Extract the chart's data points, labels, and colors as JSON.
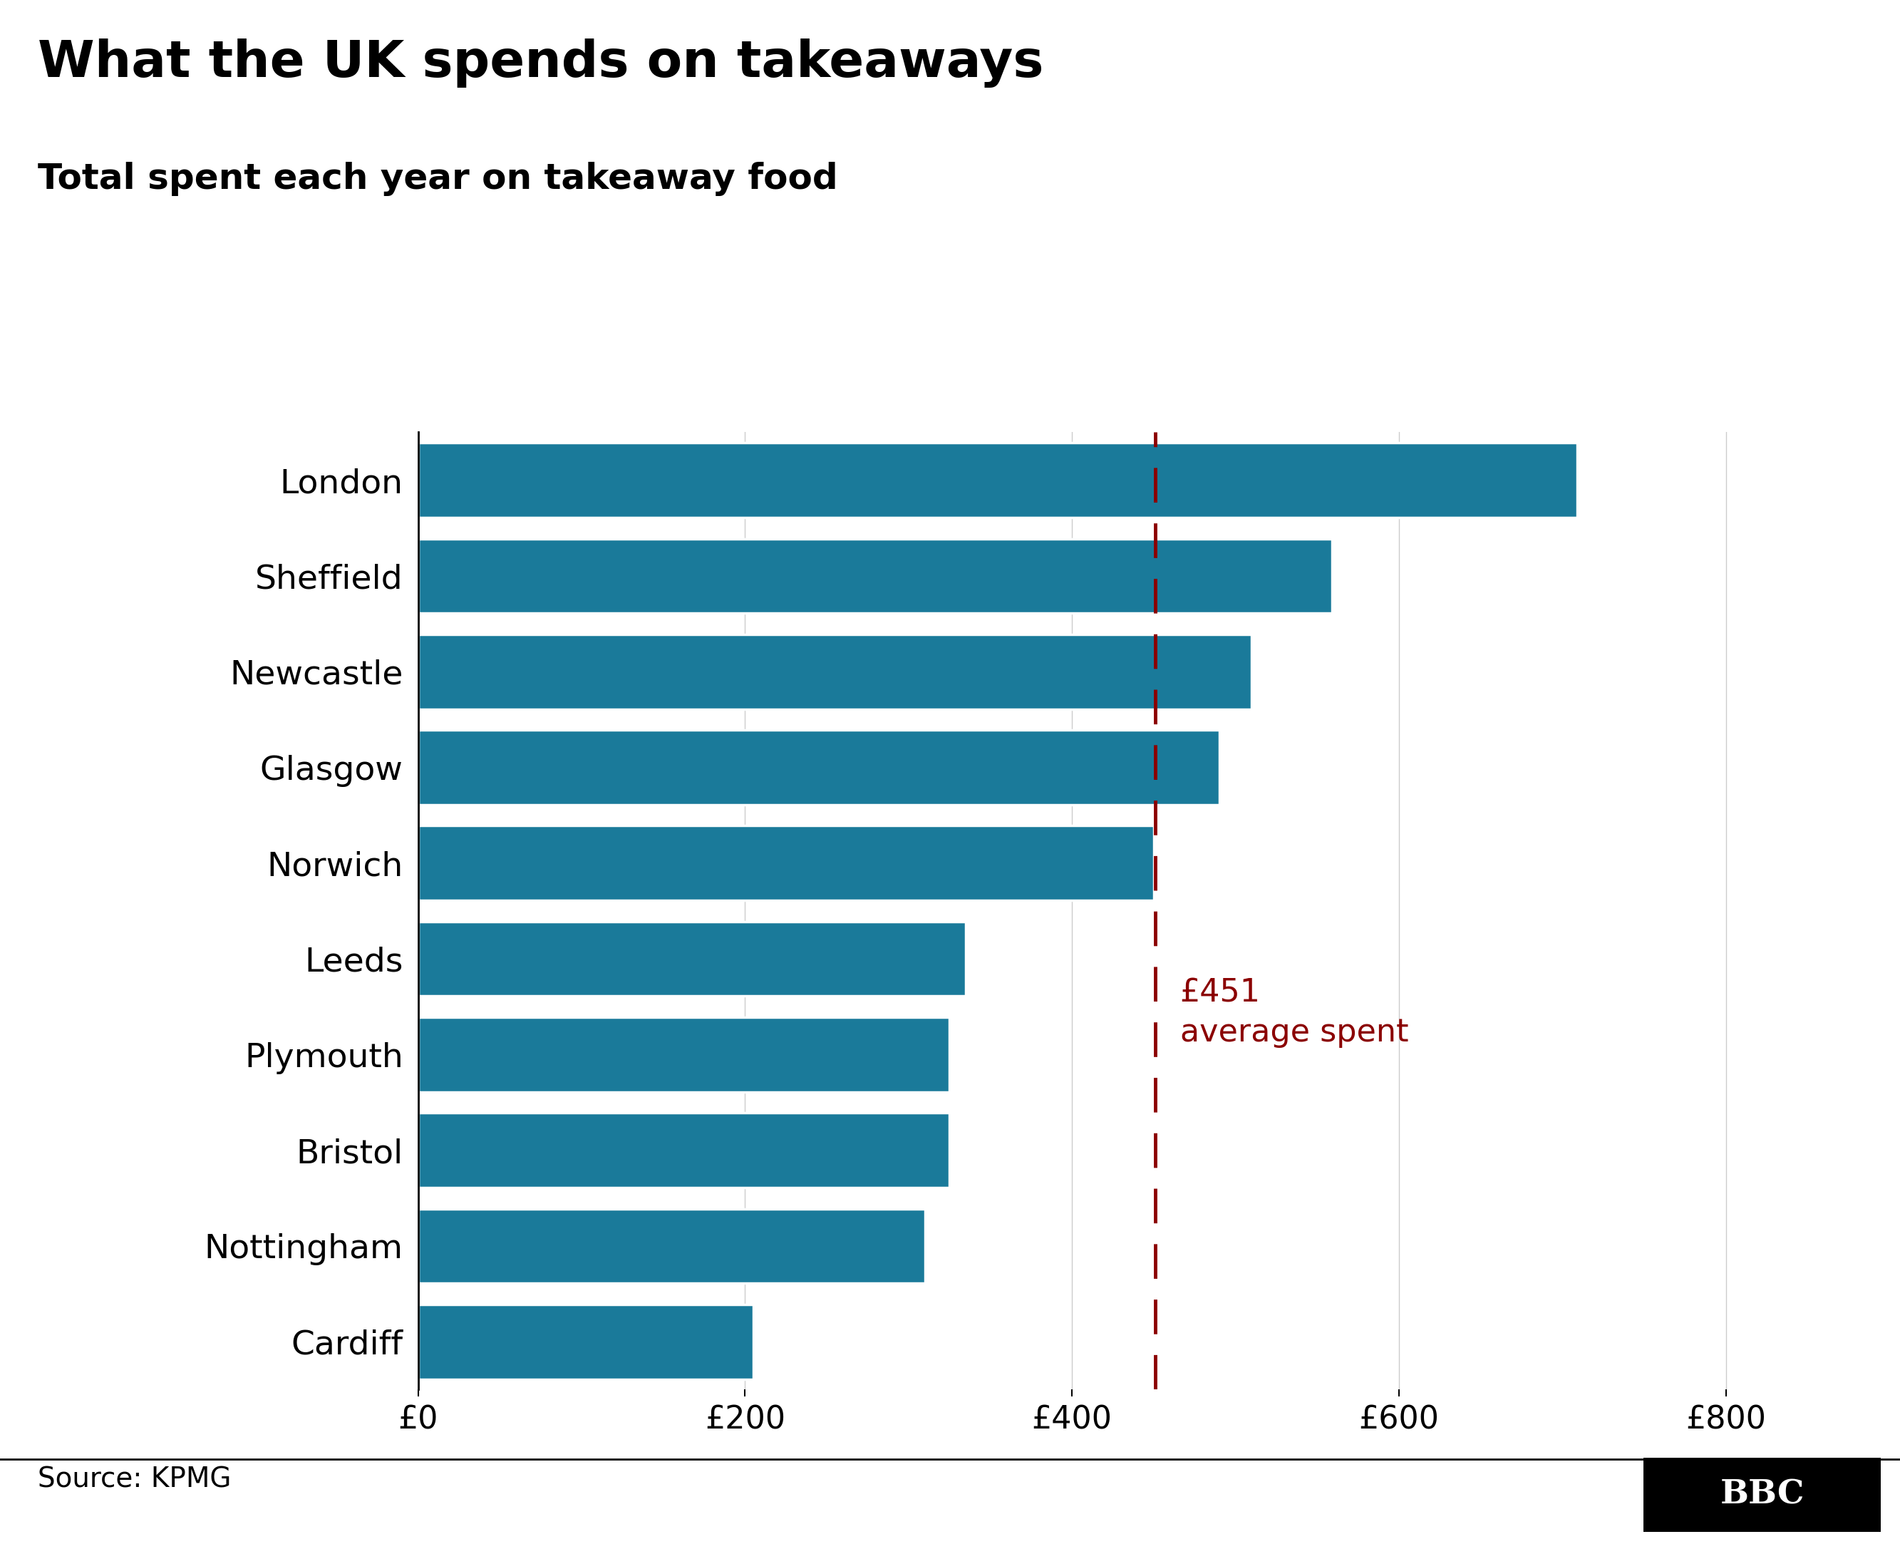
{
  "title": "What the UK spends on takeaways",
  "subtitle": "Total spent each year on takeaway food",
  "cities": [
    "London",
    "Sheffield",
    "Newcastle",
    "Glasgow",
    "Norwich",
    "Leeds",
    "Plymouth",
    "Bristol",
    "Nottingham",
    "Cardiff"
  ],
  "values": [
    709,
    559,
    510,
    490,
    450,
    335,
    325,
    325,
    310,
    205
  ],
  "bar_color": "#1a7a9a",
  "average_line": 451,
  "average_label_line1": "£451",
  "average_label_line2": "average spent",
  "average_color": "#8b0000",
  "xlim": [
    0,
    860
  ],
  "xticks": [
    0,
    200,
    400,
    600,
    800
  ],
  "xtick_labels": [
    "£0",
    "£200",
    "£400",
    "£600",
    "£800"
  ],
  "source_text": "Source: KPMG",
  "background_color": "#ffffff",
  "title_fontsize": 52,
  "subtitle_fontsize": 36,
  "label_fontsize": 34,
  "tick_fontsize": 32,
  "source_fontsize": 28,
  "average_label_fontsize": 32,
  "bar_height": 0.78,
  "grid_color": "#cccccc",
  "spine_color": "#000000"
}
